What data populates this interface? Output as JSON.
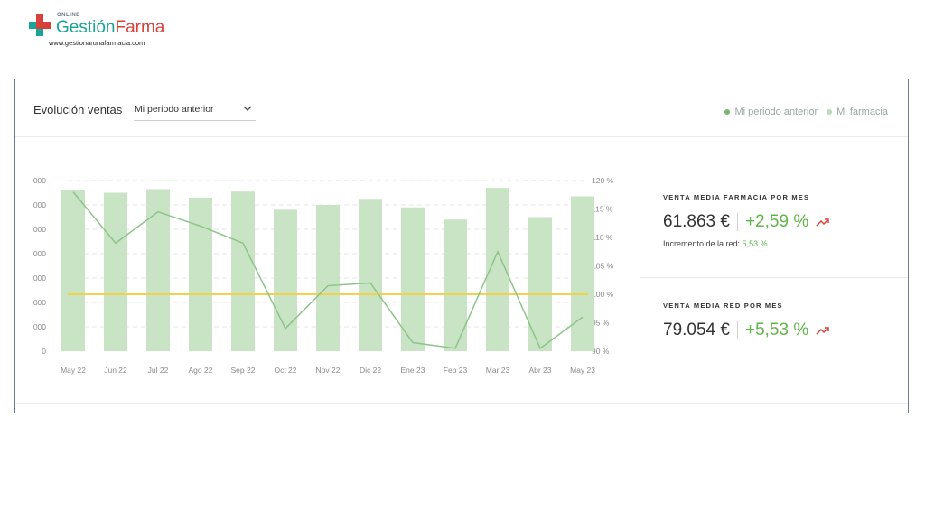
{
  "logo": {
    "online": "ONLINE",
    "name_a": "Gestión",
    "name_b": "Farma",
    "url": "www.gestionarunafarmacia.com"
  },
  "card": {
    "title": "Evolución ventas",
    "period_select": {
      "selected": "Mi periodo anterior"
    },
    "legend": [
      {
        "label": "Mi periodo anterior",
        "color": "#74b66f"
      },
      {
        "label": "Mi farmacia",
        "color": "#b9dcb5"
      }
    ]
  },
  "kpis": {
    "farmacia": {
      "label": "VENTA MEDIA FARMACIA POR MES",
      "value": "61.863 €",
      "change": "+2,59 %",
      "sub_label": "Incremento de la red:",
      "sub_value": "5,53 %"
    },
    "red": {
      "label": "VENTA MEDIA RED POR MES",
      "value": "79.054 €",
      "change": "+5,53 %"
    }
  },
  "colors": {
    "bar": "#c9e3c5",
    "line": "#8cc489",
    "reference": "#f2d24a",
    "positive": "#5fb548",
    "trend_icon": "#d8413a",
    "brand_teal": "#1aa39a",
    "brand_red": "#d8413a"
  },
  "chart_data": {
    "type": "bar",
    "categories": [
      "May 22",
      "Jun 22",
      "Jul 22",
      "Ago 22",
      "Sep 22",
      "Oct 22",
      "Nov 22",
      "Dic 22",
      "Ene 23",
      "Feb 23",
      "Mar 23",
      "Abr 23",
      "May 23"
    ],
    "series": [
      {
        "name": "Mi farmacia",
        "type": "bar",
        "axis": "left",
        "values": [
          66000,
          65000,
          66500,
          63000,
          65500,
          58000,
          60000,
          62500,
          59000,
          54000,
          67000,
          55000,
          63500
        ]
      },
      {
        "name": "Mi periodo anterior",
        "type": "line",
        "axis": "right",
        "values": [
          118,
          109,
          114.5,
          112,
          109,
          94,
          101.5,
          102,
          91.5,
          90.5,
          107.5,
          90.5,
          96
        ]
      }
    ],
    "reference_line": {
      "axis": "right",
      "value": 100
    },
    "y_left": {
      "min": 0,
      "max": 70000,
      "ticks": [
        "0",
        "10.000",
        "20.000",
        "30.000",
        "40.000",
        "50.000",
        "60.000",
        "70.000"
      ]
    },
    "y_right": {
      "min": 90,
      "max": 120,
      "ticks": [
        "90 %",
        "95 %",
        "100 %",
        "105 %",
        "110 %",
        "115 %",
        "120 %"
      ]
    },
    "grid": true
  }
}
